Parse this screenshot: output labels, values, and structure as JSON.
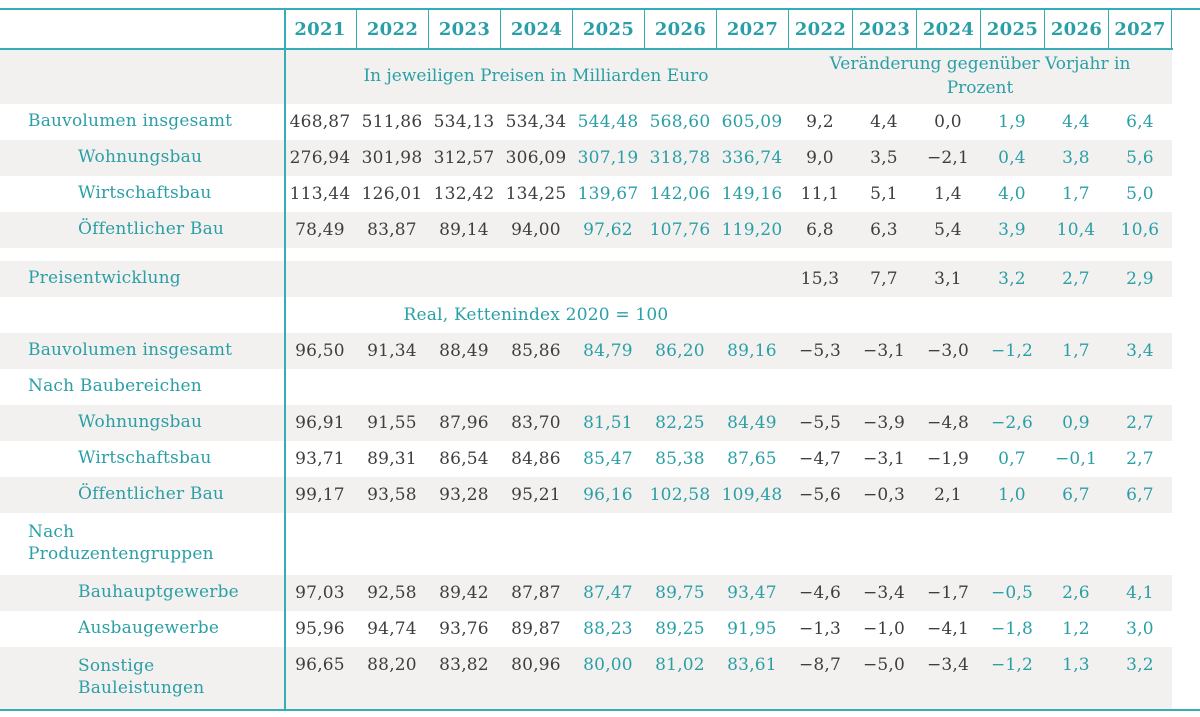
{
  "colors": {
    "accent": "#2a9fa6",
    "rule_line": "#36adb6",
    "value_dark": "#3e3e3e",
    "row_stripe": "#f2f1ef"
  },
  "table": {
    "euro_years": [
      "2021",
      "2022",
      "2023",
      "2024",
      "2025",
      "2026",
      "2027"
    ],
    "pct_years": [
      "2022",
      "2023",
      "2024",
      "2025",
      "2026",
      "2027"
    ],
    "euro_section_label": "In jeweiligen Preisen in Milliarden Euro",
    "pct_section_label": "Veränderung gegenüber Vorjahr in Prozent",
    "real_subheader": "Real, Kettenindex 2020 = 100",
    "rows": [
      {
        "type": "data",
        "label": "Bauvolumen insgesamt",
        "indent": false,
        "stripe": false,
        "euro": [
          "468,87",
          "511,86",
          "534,13",
          "534,34",
          "544,48",
          "568,60",
          "605,09"
        ],
        "pct": [
          "9,2",
          "4,4",
          "0,0",
          "1,9",
          "4,4",
          "6,4"
        ]
      },
      {
        "type": "data",
        "label": "Wohnungsbau",
        "indent": true,
        "stripe": true,
        "euro": [
          "276,94",
          "301,98",
          "312,57",
          "306,09",
          "307,19",
          "318,78",
          "336,74"
        ],
        "pct": [
          "9,0",
          "3,5",
          "−2,1",
          "0,4",
          "3,8",
          "5,6"
        ]
      },
      {
        "type": "data",
        "label": "Wirtschaftsbau",
        "indent": true,
        "stripe": false,
        "euro": [
          "113,44",
          "126,01",
          "132,42",
          "134,25",
          "139,67",
          "142,06",
          "149,16"
        ],
        "pct": [
          "11,1",
          "5,1",
          "1,4",
          "4,0",
          "1,7",
          "5,0"
        ]
      },
      {
        "type": "data",
        "label": "Öffentlicher Bau",
        "indent": true,
        "stripe": true,
        "euro": [
          "78,49",
          "83,87",
          "89,14",
          "94,00",
          "97,62",
          "107,76",
          "119,20"
        ],
        "pct": [
          "6,8",
          "6,3",
          "5,4",
          "3,9",
          "10,4",
          "10,6"
        ]
      },
      {
        "type": "spacer"
      },
      {
        "type": "data",
        "label": "Preisentwicklung",
        "indent": false,
        "stripe": true,
        "euro": [
          "",
          "",
          "",
          "",
          "",
          "",
          ""
        ],
        "pct": [
          "15,3",
          "7,7",
          "3,1",
          "3,2",
          "2,7",
          "2,9"
        ]
      },
      {
        "type": "subheader",
        "stripe": false
      },
      {
        "type": "data",
        "label": "Bauvolumen insgesamt",
        "indent": false,
        "stripe": true,
        "euro": [
          "96,50",
          "91,34",
          "88,49",
          "85,86",
          "84,79",
          "86,20",
          "89,16"
        ],
        "pct": [
          "−5,3",
          "−3,1",
          "−3,0",
          "−1,2",
          "1,7",
          "3,4"
        ]
      },
      {
        "type": "data",
        "label": "Nach Baubereichen",
        "indent": false,
        "stripe": false,
        "euro": [
          "",
          "",
          "",
          "",
          "",
          "",
          ""
        ],
        "pct": [
          "",
          "",
          "",
          "",
          "",
          ""
        ]
      },
      {
        "type": "data",
        "label": "Wohnungsbau",
        "indent": true,
        "stripe": true,
        "euro": [
          "96,91",
          "91,55",
          "87,96",
          "83,70",
          "81,51",
          "82,25",
          "84,49"
        ],
        "pct": [
          "−5,5",
          "−3,9",
          "−4,8",
          "−2,6",
          "0,9",
          "2,7"
        ]
      },
      {
        "type": "data",
        "label": "Wirtschaftsbau",
        "indent": true,
        "stripe": false,
        "euro": [
          "93,71",
          "89,31",
          "86,54",
          "84,86",
          "85,47",
          "85,38",
          "87,65"
        ],
        "pct": [
          "−4,7",
          "−3,1",
          "−1,9",
          "0,7",
          "−0,1",
          "2,7"
        ]
      },
      {
        "type": "data",
        "label": "Öffentlicher Bau",
        "indent": true,
        "stripe": true,
        "euro": [
          "99,17",
          "93,58",
          "93,28",
          "95,21",
          "96,16",
          "102,58",
          "109,48"
        ],
        "pct": [
          "−5,6",
          "−0,3",
          "2,1",
          "1,0",
          "6,7",
          "6,7"
        ]
      },
      {
        "type": "data",
        "label": "Nach\nProduzentengruppen",
        "indent": false,
        "stripe": false,
        "euro": [
          "",
          "",
          "",
          "",
          "",
          "",
          ""
        ],
        "pct": [
          "",
          "",
          "",
          "",
          "",
          ""
        ]
      },
      {
        "type": "data",
        "label": "Bauhauptgewerbe",
        "indent": true,
        "stripe": true,
        "euro": [
          "97,03",
          "92,58",
          "89,42",
          "87,87",
          "87,47",
          "89,75",
          "93,47"
        ],
        "pct": [
          "−4,6",
          "−3,4",
          "−1,7",
          "−0,5",
          "2,6",
          "4,1"
        ]
      },
      {
        "type": "data",
        "label": "Ausbaugewerbe",
        "indent": true,
        "stripe": false,
        "euro": [
          "95,96",
          "94,74",
          "93,76",
          "89,87",
          "88,23",
          "89,25",
          "91,95"
        ],
        "pct": [
          "−1,3",
          "−1,0",
          "−4,1",
          "−1,8",
          "1,2",
          "3,0"
        ]
      },
      {
        "type": "data",
        "label": "Sonstige\nBauleistungen",
        "indent": true,
        "stripe": true,
        "euro": [
          "96,65",
          "88,20",
          "83,82",
          "80,96",
          "80,00",
          "81,02",
          "83,61"
        ],
        "pct": [
          "−8,7",
          "−5,0",
          "−3,4",
          "−1,2",
          "1,3",
          "3,2"
        ]
      }
    ]
  },
  "chart_data": {
    "type": "table",
    "forecast_years": [
      2025,
      2026,
      2027
    ],
    "sections": [
      {
        "title": "In jeweiligen Preisen in Milliarden Euro",
        "years": [
          2021,
          2022,
          2023,
          2024,
          2025,
          2026,
          2027
        ],
        "rows": [
          {
            "label": "Bauvolumen insgesamt",
            "values": [
              468.87,
              511.86,
              534.13,
              534.34,
              544.48,
              568.6,
              605.09
            ]
          },
          {
            "label": "Wohnungsbau",
            "values": [
              276.94,
              301.98,
              312.57,
              306.09,
              307.19,
              318.78,
              336.74
            ]
          },
          {
            "label": "Wirtschaftsbau",
            "values": [
              113.44,
              126.01,
              132.42,
              134.25,
              139.67,
              142.06,
              149.16
            ]
          },
          {
            "label": "Öffentlicher Bau",
            "values": [
              78.49,
              83.87,
              89.14,
              94.0,
              97.62,
              107.76,
              119.2
            ]
          }
        ]
      },
      {
        "title": "Veränderung gegenüber Vorjahr in Prozent",
        "years": [
          2022,
          2023,
          2024,
          2025,
          2026,
          2027
        ],
        "rows": [
          {
            "label": "Bauvolumen insgesamt",
            "values": [
              9.2,
              4.4,
              0.0,
              1.9,
              4.4,
              6.4
            ]
          },
          {
            "label": "Wohnungsbau",
            "values": [
              9.0,
              3.5,
              -2.1,
              0.4,
              3.8,
              5.6
            ]
          },
          {
            "label": "Wirtschaftsbau",
            "values": [
              11.1,
              5.1,
              1.4,
              4.0,
              1.7,
              5.0
            ]
          },
          {
            "label": "Öffentlicher Bau",
            "values": [
              6.8,
              6.3,
              5.4,
              3.9,
              10.4,
              10.6
            ]
          },
          {
            "label": "Preisentwicklung",
            "values": [
              15.3,
              7.7,
              3.1,
              3.2,
              2.7,
              2.9
            ]
          },
          {
            "label": "Bauvolumen insgesamt (real)",
            "values": [
              -5.3,
              -3.1,
              -3.0,
              -1.2,
              1.7,
              3.4
            ]
          },
          {
            "label": "Wohnungsbau (real)",
            "values": [
              -5.5,
              -3.9,
              -4.8,
              -2.6,
              0.9,
              2.7
            ]
          },
          {
            "label": "Wirtschaftsbau (real)",
            "values": [
              -4.7,
              -3.1,
              -1.9,
              0.7,
              -0.1,
              2.7
            ]
          },
          {
            "label": "Öffentlicher Bau (real)",
            "values": [
              -5.6,
              -0.3,
              2.1,
              1.0,
              6.7,
              6.7
            ]
          },
          {
            "label": "Bauhauptgewerbe (real)",
            "values": [
              -4.6,
              -3.4,
              -1.7,
              -0.5,
              2.6,
              4.1
            ]
          },
          {
            "label": "Ausbaugewerbe (real)",
            "values": [
              -1.3,
              -1.0,
              -4.1,
              -1.8,
              1.2,
              3.0
            ]
          },
          {
            "label": "Sonstige Bauleistungen (real)",
            "values": [
              -8.7,
              -5.0,
              -3.4,
              -1.2,
              1.3,
              3.2
            ]
          }
        ]
      },
      {
        "title": "Real, Kettenindex 2020 = 100",
        "years": [
          2021,
          2022,
          2023,
          2024,
          2025,
          2026,
          2027
        ],
        "rows": [
          {
            "label": "Bauvolumen insgesamt",
            "values": [
              96.5,
              91.34,
              88.49,
              85.86,
              84.79,
              86.2,
              89.16
            ]
          },
          {
            "label": "Wohnungsbau",
            "values": [
              96.91,
              91.55,
              87.96,
              83.7,
              81.51,
              82.25,
              84.49
            ]
          },
          {
            "label": "Wirtschaftsbau",
            "values": [
              93.71,
              89.31,
              86.54,
              84.86,
              85.47,
              85.38,
              87.65
            ]
          },
          {
            "label": "Öffentlicher Bau",
            "values": [
              99.17,
              93.58,
              93.28,
              95.21,
              96.16,
              102.58,
              109.48
            ]
          },
          {
            "label": "Bauhauptgewerbe",
            "values": [
              97.03,
              92.58,
              89.42,
              87.87,
              87.47,
              89.75,
              93.47
            ]
          },
          {
            "label": "Ausbaugewerbe",
            "values": [
              95.96,
              94.74,
              93.76,
              89.87,
              88.23,
              89.25,
              91.95
            ]
          },
          {
            "label": "Sonstige Bauleistungen",
            "values": [
              96.65,
              88.2,
              83.82,
              80.96,
              80.0,
              81.02,
              83.61
            ]
          }
        ]
      }
    ]
  }
}
